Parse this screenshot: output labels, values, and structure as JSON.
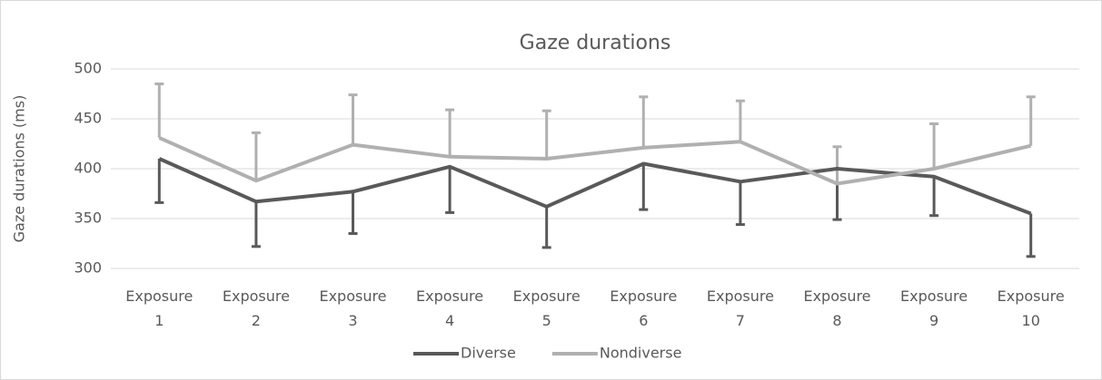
{
  "chart_data": {
    "type": "line",
    "title": "Gaze durations",
    "y_label": "Gaze durations (ms)",
    "categories": [
      "Exposure 1",
      "Exposure 2",
      "Exposure 3",
      "Exposure 4",
      "Exposure 5",
      "Exposure 6",
      "Exposure 7",
      "Exposure 8",
      "Exposure 9",
      "Exposure 10"
    ],
    "series": [
      {
        "name": "Diverse",
        "color": "#595959",
        "error_direction": "minus",
        "values": [
          410,
          367,
          377,
          402,
          362,
          405,
          387,
          400,
          392,
          355
        ],
        "errors": [
          44,
          45,
          42,
          46,
          41,
          46,
          43,
          51,
          39,
          43
        ]
      },
      {
        "name": "Nondiverse",
        "color": "#b0b0b0",
        "error_direction": "plus",
        "values": [
          431,
          388,
          424,
          412,
          410,
          421,
          427,
          385,
          400,
          423
        ],
        "errors": [
          54,
          48,
          50,
          47,
          48,
          51,
          41,
          37,
          45,
          49
        ]
      }
    ],
    "ylim": [
      300,
      500
    ],
    "yticks": [
      300,
      350,
      400,
      450,
      500
    ],
    "grid": true,
    "legend": "bottom"
  }
}
